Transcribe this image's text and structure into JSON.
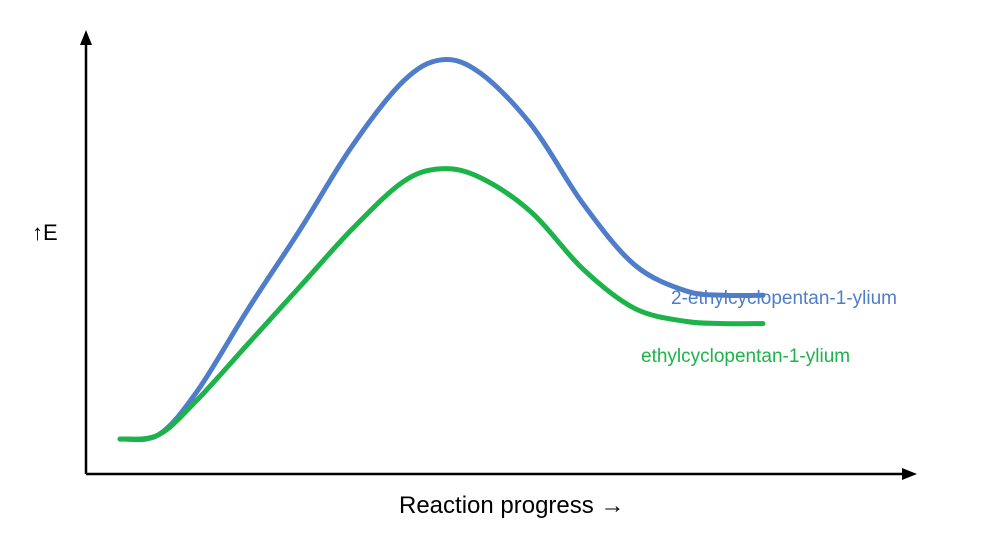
{
  "chart_data": {
    "type": "line",
    "title": "",
    "xlabel": "Reaction progress →",
    "ylabel": "↑E",
    "xlim": [
      0,
      1
    ],
    "ylim": [
      0,
      1
    ],
    "grid": false,
    "legend": "none",
    "series": [
      {
        "name": "2-ethylcyclopentan-1-ylium",
        "color": "#4f7dc9",
        "x": [
          0.0,
          0.06,
          0.12,
          0.2,
          0.28,
          0.36,
          0.44,
          0.5,
          0.56,
          0.64,
          0.72,
          0.8,
          0.88,
          0.94,
          1.0
        ],
        "y": [
          0.08,
          0.09,
          0.19,
          0.38,
          0.56,
          0.75,
          0.9,
          0.95,
          0.92,
          0.8,
          0.62,
          0.48,
          0.42,
          0.41,
          0.41
        ]
      },
      {
        "name": "ethylcyclopentan-1-ylium",
        "color": "#1db34a",
        "x": [
          0.0,
          0.06,
          0.12,
          0.2,
          0.28,
          0.36,
          0.44,
          0.5,
          0.56,
          0.64,
          0.72,
          0.8,
          0.88,
          0.94,
          1.0
        ],
        "y": [
          0.08,
          0.09,
          0.17,
          0.3,
          0.43,
          0.56,
          0.67,
          0.7,
          0.68,
          0.6,
          0.47,
          0.38,
          0.35,
          0.345,
          0.345
        ]
      }
    ]
  }
}
